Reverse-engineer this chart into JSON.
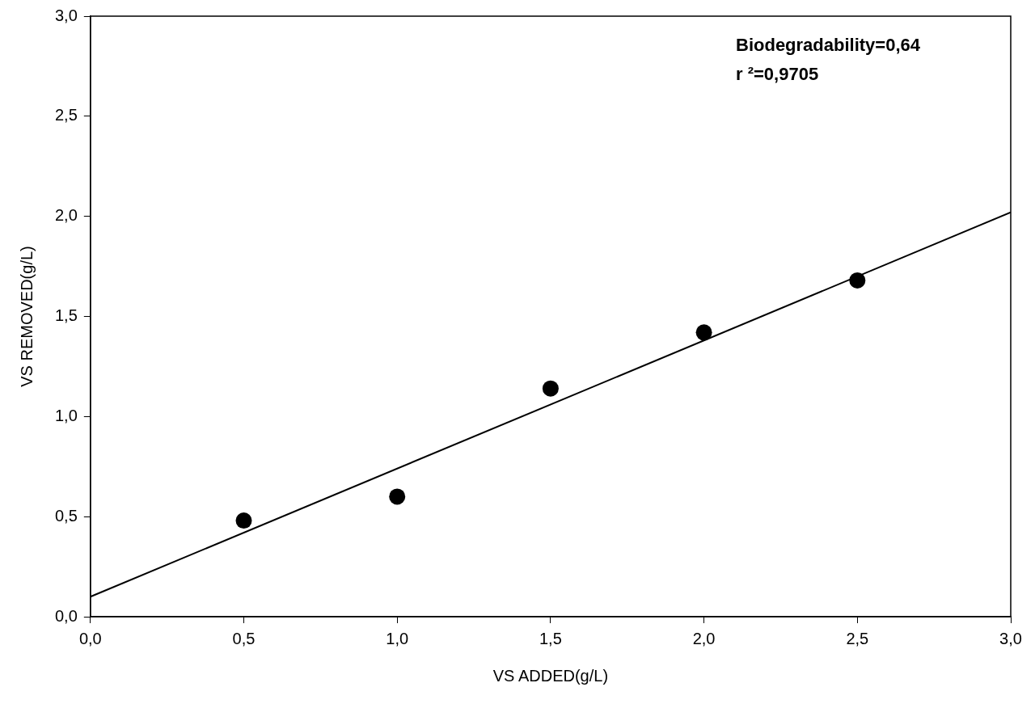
{
  "chart_data": {
    "type": "scatter",
    "xlabel": "VS ADDED(g/L)",
    "ylabel": "VS REMOVED(g/L)",
    "annotations": [
      "Biodegradability=0,64",
      "r ²=0,9705"
    ],
    "xlim": [
      0,
      3
    ],
    "ylim": [
      0,
      3
    ],
    "xticks": [
      {
        "value": 0,
        "label": "0,0"
      },
      {
        "value": 0.5,
        "label": "0,5"
      },
      {
        "value": 1,
        "label": "1,0"
      },
      {
        "value": 1.5,
        "label": "1,5"
      },
      {
        "value": 2,
        "label": "2,0"
      },
      {
        "value": 2.5,
        "label": "2,5"
      },
      {
        "value": 3,
        "label": "3,0"
      }
    ],
    "yticks": [
      {
        "value": 0,
        "label": "0,0"
      },
      {
        "value": 0.5,
        "label": "0,5"
      },
      {
        "value": 1,
        "label": "1,0"
      },
      {
        "value": 1.5,
        "label": "1,5"
      },
      {
        "value": 2,
        "label": "2,0"
      },
      {
        "value": 2.5,
        "label": "2,5"
      },
      {
        "value": 3,
        "label": "3,0"
      }
    ],
    "grid": false,
    "legend": false,
    "marker": "circle",
    "series": [
      {
        "color": "#000000",
        "x": [
          0.5,
          1,
          1.5,
          2,
          2.5
        ],
        "values": [
          0.48,
          0.6,
          1.14,
          1.42,
          1.68
        ]
      },
      {
        "type": "line",
        "color": "#000000",
        "marker": "none",
        "x": [
          0,
          3
        ],
        "values": [
          0.1,
          2.02
        ]
      }
    ]
  }
}
